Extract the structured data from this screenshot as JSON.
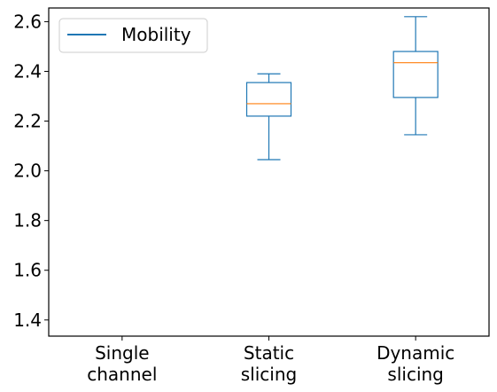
{
  "chart_data": {
    "type": "box",
    "categories": [
      "Single\nchannel",
      "Static\nslicing",
      "Dynamic\nslicing"
    ],
    "series": [
      {
        "name": "Mobility",
        "boxes": [
          null,
          {
            "whisker_low": 2.045,
            "q1": 2.22,
            "median": 2.27,
            "q3": 2.355,
            "whisker_high": 2.39
          },
          {
            "whisker_low": 2.145,
            "q1": 2.295,
            "median": 2.435,
            "q3": 2.48,
            "whisker_high": 2.62
          }
        ]
      }
    ],
    "yticks": [
      1.4,
      1.6,
      1.8,
      2.0,
      2.2,
      2.4,
      2.6
    ],
    "ylim": [
      1.335,
      2.655
    ],
    "xlabel": "",
    "ylabel": "",
    "title": "",
    "grid": false,
    "legend": {
      "position": "upper-left",
      "entries": [
        "Mobility"
      ]
    },
    "colors": {
      "box": "#1f77b4",
      "median": "#ff7f0e",
      "axis": "#000000"
    }
  }
}
